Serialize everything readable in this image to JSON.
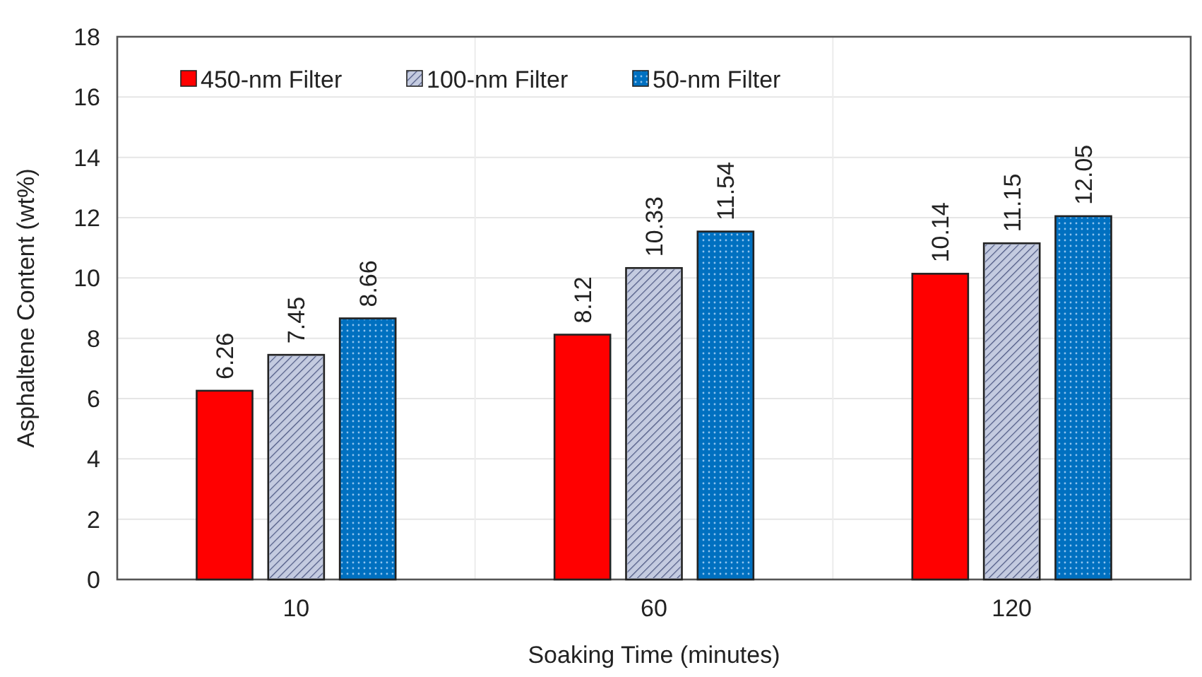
{
  "chart_data": {
    "type": "bar",
    "xlabel": "Soaking Time (minutes)",
    "ylabel": "Asphaltene Content (wt%)",
    "categories": [
      "10",
      "60",
      "120"
    ],
    "series": [
      {
        "name": "450-nm Filter",
        "color": "#ff0000",
        "values": [
          6.26,
          8.12,
          10.14
        ]
      },
      {
        "name": "100-nm Filter",
        "color": "#c4cbe0",
        "values": [
          7.45,
          10.33,
          11.15
        ]
      },
      {
        "name": "50-nm Filter",
        "color": "#0070c0",
        "values": [
          8.66,
          11.54,
          12.05
        ]
      }
    ],
    "ylim": [
      0,
      18
    ],
    "yticks": [
      0,
      2,
      4,
      6,
      8,
      10,
      12,
      14,
      16,
      18
    ],
    "grid": true,
    "legend": "top left",
    "data_labels": true
  }
}
